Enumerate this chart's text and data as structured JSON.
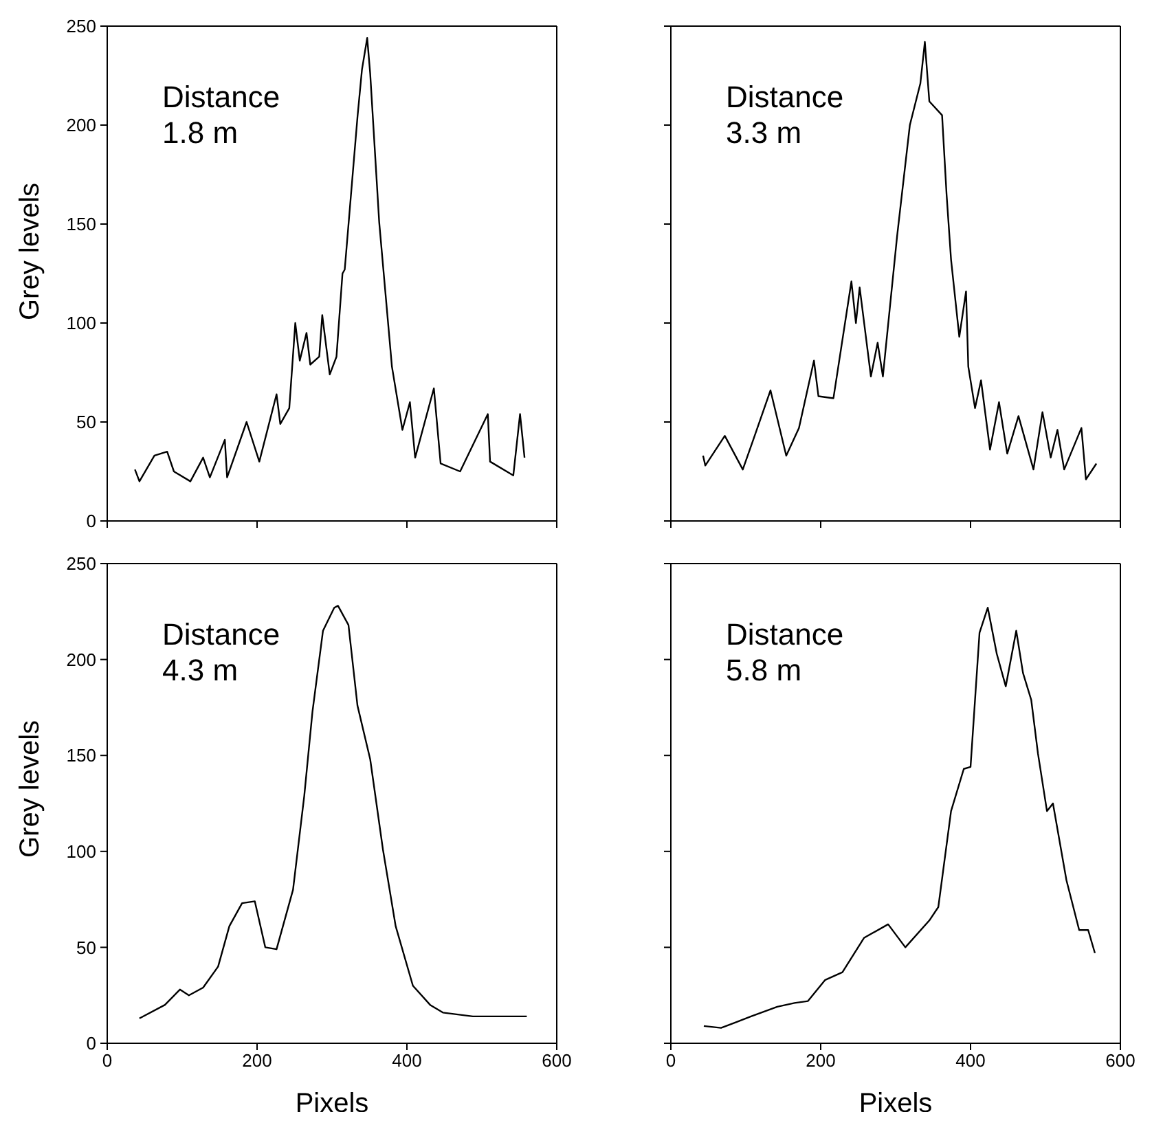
{
  "chart_data": [
    {
      "type": "line",
      "color": "#000000",
      "ylabel": "Grey levels",
      "annotations": [
        "Distance",
        "1.8 m"
      ],
      "xlim": [
        0,
        600
      ],
      "ylim": [
        0,
        250
      ],
      "xticks": [
        0,
        200,
        400,
        600
      ],
      "yticks": [
        0,
        50,
        100,
        150,
        200,
        250
      ],
      "tick_labels": "y",
      "x": [
        37,
        43,
        63,
        80,
        89,
        111,
        128,
        137,
        157,
        160,
        186,
        203,
        226,
        231,
        243,
        251,
        257,
        266,
        271,
        283,
        287,
        297,
        306,
        314,
        317,
        334,
        340,
        347,
        351,
        363,
        380,
        394,
        404,
        411,
        436,
        445,
        471,
        508,
        511,
        542,
        551,
        557
      ],
      "values": [
        26,
        20,
        33,
        35,
        25,
        20,
        32,
        22,
        41,
        22,
        50,
        30,
        64,
        49,
        57,
        100,
        81,
        95,
        79,
        83,
        104,
        74,
        83,
        125,
        127,
        204,
        228,
        244,
        226,
        151,
        78,
        46,
        60,
        32,
        67,
        29,
        25,
        54,
        30,
        23,
        54,
        32
      ]
    },
    {
      "type": "line",
      "color": "#000000",
      "annotations": [
        "Distance",
        "3.3 m"
      ],
      "xlim": [
        0,
        600
      ],
      "ylim": [
        0,
        250
      ],
      "xticks": [
        0,
        200,
        400,
        600
      ],
      "yticks": [
        0,
        50,
        100,
        150,
        200,
        250
      ],
      "tick_labels": false,
      "x": [
        43,
        46,
        72,
        96,
        110,
        133,
        154,
        171,
        191,
        197,
        217,
        241,
        247,
        252,
        267,
        276,
        283,
        302,
        319,
        333,
        339,
        345,
        362,
        368,
        374,
        385,
        394,
        397,
        406,
        414,
        426,
        438,
        449,
        464,
        484,
        496,
        507,
        516,
        525,
        548,
        554,
        568
      ],
      "values": [
        33,
        28,
        43,
        26,
        41,
        66,
        33,
        47,
        81,
        63,
        62,
        121,
        100,
        118,
        73,
        90,
        73,
        144,
        200,
        221,
        242,
        212,
        205,
        165,
        132,
        93,
        116,
        78,
        57,
        71,
        36,
        60,
        34,
        53,
        26,
        55,
        32,
        46,
        26,
        47,
        21,
        29
      ]
    },
    {
      "type": "line",
      "color": "#000000",
      "ylabel": "Grey levels",
      "xlabel": "Pixels",
      "annotations": [
        "Distance",
        "4.3 m"
      ],
      "xlim": [
        0,
        600
      ],
      "ylim": [
        0,
        250
      ],
      "xticks": [
        0,
        200,
        400,
        600
      ],
      "yticks": [
        0,
        50,
        100,
        150,
        200,
        250
      ],
      "x": [
        43,
        77,
        97,
        109,
        128,
        148,
        163,
        180,
        197,
        211,
        226,
        248,
        263,
        274,
        288,
        303,
        308,
        322,
        334,
        351,
        368,
        385,
        408,
        431,
        448,
        488,
        517,
        560
      ],
      "values": [
        13,
        20,
        28,
        25,
        29,
        40,
        61,
        73,
        74,
        50,
        49,
        80,
        129,
        173,
        215,
        227,
        228,
        218,
        176,
        148,
        101,
        61,
        30,
        20,
        16,
        14,
        14,
        14
      ]
    },
    {
      "type": "line",
      "color": "#000000",
      "xlabel": "Pixels",
      "annotations": [
        "Distance",
        "5.8 m"
      ],
      "xlim": [
        0,
        600
      ],
      "ylim": [
        0,
        250
      ],
      "xticks": [
        0,
        200,
        400,
        600
      ],
      "yticks": [
        0,
        50,
        100,
        150,
        200,
        250
      ],
      "tick_labels": "x",
      "x": [
        44,
        67,
        87,
        107,
        142,
        165,
        183,
        206,
        229,
        258,
        290,
        313,
        345,
        357,
        374,
        391,
        400,
        412,
        423,
        435,
        447,
        461,
        470,
        481,
        490,
        502,
        510,
        528,
        545,
        557,
        566
      ],
      "values": [
        9,
        8,
        11,
        14,
        19,
        21,
        22,
        33,
        37,
        55,
        62,
        50,
        64,
        71,
        121,
        143,
        144,
        214,
        227,
        203,
        186,
        215,
        193,
        179,
        151,
        121,
        125,
        85,
        59,
        59,
        47
      ]
    }
  ]
}
